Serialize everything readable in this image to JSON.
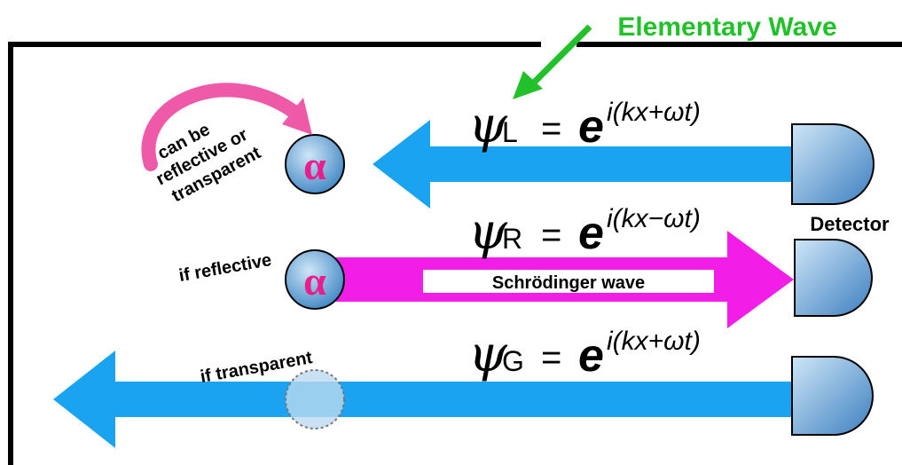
{
  "header": {
    "title": "Elementary Wave"
  },
  "side_note": {
    "lines": [
      "can be",
      "reflective or",
      "transparent"
    ]
  },
  "alphas": [
    "α",
    "α"
  ],
  "equations": [
    {
      "symbol": "ψ",
      "subscript": "L",
      "equals": "=",
      "base": "e",
      "exponent": "i(kx+ωt)"
    },
    {
      "symbol": "ψ",
      "subscript": "R",
      "equals": "=",
      "base": "e",
      "exponent": "i(kx−ωt)"
    },
    {
      "symbol": "ψ",
      "subscript": "G",
      "equals": "=",
      "base": "e",
      "exponent": "i(kx+ωt)"
    }
  ],
  "labels": {
    "detector": "Detector",
    "if_reflective": "if reflective",
    "wave": "Schrödinger wave",
    "if_transparent": "if transparent"
  }
}
